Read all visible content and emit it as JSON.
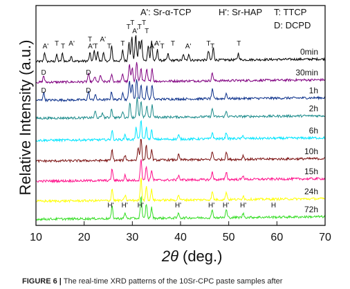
{
  "chart_data": {
    "type": "line",
    "xlabel_symbol": "2θ",
    "xlabel_unit": "(deg.)",
    "ylabel": "Relative Intensity (a.u.)",
    "xlim": [
      10,
      70
    ],
    "xticks": [
      10,
      20,
      30,
      40,
      50,
      60,
      70
    ],
    "legend": [
      "A': Sr-α-TCP",
      "H': Sr-HAP",
      "T: TTCP",
      "D: DCPD"
    ],
    "series": [
      {
        "name": "0min",
        "color": "#000000",
        "peaks": [
          [
            11.8,
            0.35
          ],
          [
            14.3,
            0.25
          ],
          [
            15.5,
            0.3
          ],
          [
            17.3,
            0.22
          ],
          [
            21.2,
            0.3
          ],
          [
            22.1,
            0.4
          ],
          [
            22.8,
            0.35
          ],
          [
            24.0,
            0.3
          ],
          [
            25.7,
            0.55
          ],
          [
            28.0,
            0.4
          ],
          [
            29.3,
            0.75
          ],
          [
            29.9,
            0.9
          ],
          [
            30.7,
            1.0
          ],
          [
            31.4,
            0.75
          ],
          [
            31.9,
            0.8
          ],
          [
            33.3,
            0.6
          ],
          [
            34.0,
            0.75
          ],
          [
            35.2,
            0.4
          ],
          [
            37.4,
            0.25
          ],
          [
            40.6,
            0.2
          ],
          [
            41.7,
            0.25
          ],
          [
            45.8,
            0.35
          ],
          [
            46.8,
            0.45
          ],
          [
            52.0,
            0.25
          ]
        ]
      },
      {
        "name": "30min",
        "color": "#800080",
        "peaks": [
          [
            11.6,
            0.25
          ],
          [
            20.9,
            0.3
          ],
          [
            22.2,
            0.2
          ],
          [
            23.4,
            0.25
          ],
          [
            25.7,
            0.3
          ],
          [
            28.0,
            0.3
          ],
          [
            29.4,
            0.65
          ],
          [
            30.0,
            0.55
          ],
          [
            30.9,
            0.75
          ],
          [
            31.8,
            0.5
          ],
          [
            33.0,
            0.45
          ],
          [
            34.1,
            0.5
          ],
          [
            46.6,
            0.3
          ]
        ]
      },
      {
        "name": "1h",
        "color": "#0a2f8a",
        "peaks": [
          [
            11.6,
            0.3
          ],
          [
            20.9,
            0.32
          ],
          [
            22.3,
            0.2
          ],
          [
            25.7,
            0.3
          ],
          [
            28.0,
            0.3
          ],
          [
            29.4,
            0.75
          ],
          [
            30.0,
            0.6
          ],
          [
            30.9,
            0.8
          ],
          [
            31.8,
            0.55
          ],
          [
            33.0,
            0.5
          ],
          [
            34.1,
            0.55
          ],
          [
            46.6,
            0.35
          ],
          [
            49.5,
            0.2
          ]
        ]
      },
      {
        "name": "2h",
        "color": "#1a8a8a",
        "peaks": [
          [
            22.3,
            0.25
          ],
          [
            23.8,
            0.2
          ],
          [
            25.7,
            0.35
          ],
          [
            28.0,
            0.25
          ],
          [
            29.5,
            0.55
          ],
          [
            31.0,
            0.75
          ],
          [
            31.8,
            0.6
          ],
          [
            33.0,
            0.45
          ],
          [
            34.1,
            0.45
          ],
          [
            46.6,
            0.3
          ],
          [
            49.5,
            0.2
          ]
        ]
      },
      {
        "name": "6h",
        "color": "#00e5ff",
        "peaks": [
          [
            25.8,
            0.35
          ],
          [
            28.5,
            0.2
          ],
          [
            30.8,
            0.45
          ],
          [
            31.8,
            0.75
          ],
          [
            32.9,
            0.45
          ],
          [
            34.0,
            0.35
          ],
          [
            39.6,
            0.15
          ],
          [
            46.6,
            0.25
          ],
          [
            49.5,
            0.25
          ],
          [
            53.0,
            0.12
          ]
        ]
      },
      {
        "name": "10h",
        "color": "#7a0f0f",
        "peaks": [
          [
            25.8,
            0.4
          ],
          [
            28.5,
            0.2
          ],
          [
            31.2,
            0.5
          ],
          [
            31.8,
            0.85
          ],
          [
            32.9,
            0.55
          ],
          [
            34.0,
            0.4
          ],
          [
            39.6,
            0.2
          ],
          [
            46.6,
            0.3
          ],
          [
            49.5,
            0.3
          ],
          [
            53.0,
            0.15
          ]
        ]
      },
      {
        "name": "15h",
        "color": "#ff0f8a",
        "peaks": [
          [
            25.8,
            0.45
          ],
          [
            28.5,
            0.2
          ],
          [
            31.8,
            0.85
          ],
          [
            32.9,
            0.55
          ],
          [
            34.0,
            0.4
          ],
          [
            39.6,
            0.2
          ],
          [
            46.6,
            0.3
          ],
          [
            49.5,
            0.3
          ],
          [
            53.0,
            0.15
          ]
        ]
      },
      {
        "name": "24h",
        "color": "#ffff00",
        "peaks": [
          [
            25.8,
            0.45
          ],
          [
            28.5,
            0.2
          ],
          [
            31.8,
            0.85
          ],
          [
            32.9,
            0.55
          ],
          [
            34.0,
            0.4
          ],
          [
            39.6,
            0.2
          ],
          [
            46.6,
            0.3
          ],
          [
            49.5,
            0.3
          ],
          [
            53.0,
            0.15
          ]
        ]
      },
      {
        "name": "72h",
        "color": "#33dd22",
        "peaks": [
          [
            25.8,
            0.45
          ],
          [
            28.5,
            0.2
          ],
          [
            31.8,
            0.85
          ],
          [
            32.9,
            0.55
          ],
          [
            34.0,
            0.4
          ],
          [
            39.6,
            0.2
          ],
          [
            46.6,
            0.3
          ],
          [
            49.5,
            0.3
          ],
          [
            53.0,
            0.15
          ]
        ]
      }
    ],
    "annotations": [
      {
        "series": "0min",
        "labels": [
          [
            "A'",
            12.0
          ],
          [
            "T",
            14.3
          ],
          [
            "T",
            15.6
          ],
          [
            "A'",
            17.4
          ],
          [
            "A'",
            21.4
          ],
          [
            "T",
            21.2
          ],
          [
            "T",
            22.4
          ],
          [
            "A'",
            23.9
          ],
          [
            "T",
            25.2
          ],
          [
            "T",
            28.0
          ],
          [
            "T",
            29.2
          ],
          [
            "T",
            30.0
          ],
          [
            "A'",
            30.6
          ],
          [
            "T",
            31.5
          ],
          [
            "T",
            32.4
          ],
          [
            "T",
            33.0
          ],
          [
            "A'",
            34.2
          ],
          [
            "A'",
            35.2
          ],
          [
            "T",
            36.2
          ],
          [
            "T",
            38.4
          ],
          [
            "A'",
            41.6
          ],
          [
            "T",
            45.8
          ],
          [
            "T",
            46.6
          ],
          [
            "T",
            52.1
          ]
        ]
      },
      {
        "series": "30min",
        "labels": [
          [
            "D",
            11.6
          ],
          [
            "D",
            20.9
          ]
        ]
      },
      {
        "series": "1h",
        "labels": [
          [
            "D",
            11.6
          ],
          [
            "D",
            20.9
          ]
        ]
      },
      {
        "series": "72h",
        "labels": [
          [
            "H'",
            25.5
          ],
          [
            "H'",
            28.4
          ],
          [
            "H'",
            31.7
          ],
          [
            "H'",
            39.5
          ],
          [
            "H'",
            46.4
          ],
          [
            "H'",
            49.4
          ],
          [
            "H'",
            53.0
          ],
          [
            "H",
            59.3
          ]
        ]
      }
    ]
  },
  "caption": {
    "bold": "FIGURE 6 |",
    "text": " The real-time XRD patterns of the 10Sr-CPC paste samples after"
  }
}
